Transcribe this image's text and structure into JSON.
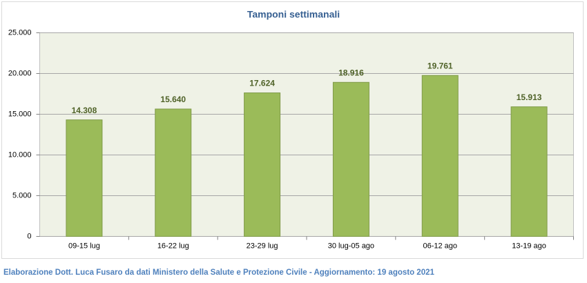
{
  "chart_data": {
    "type": "bar",
    "title": "Tamponi settimanali",
    "categories": [
      "09-15 lug",
      "16-22 lug",
      "23-29 lug",
      "30 lug-05 ago",
      "06-12 ago",
      "13-19 ago"
    ],
    "values": [
      14308,
      15640,
      17624,
      18916,
      19761,
      15913
    ],
    "value_labels": [
      "14.308",
      "15.640",
      "17.624",
      "18.916",
      "19.761",
      "15.913"
    ],
    "color": "#9bbb59",
    "ylim": [
      0,
      25000
    ],
    "yticks": [
      0,
      {
        "value": 5000,
        "label": "5.000"
      },
      {
        "value": 10000,
        "label": "10.000"
      },
      {
        "value": 15000,
        "label": "15.000"
      },
      {
        "value": 20000,
        "label": "20.000"
      },
      {
        "value": 25000,
        "label": "25.000"
      }
    ],
    "grid": true
  },
  "footer": "Elaborazione Dott. Luca Fusaro da dati Ministero della Salute e Protezione Civile - Aggiornamento: 19 agosto 2021"
}
